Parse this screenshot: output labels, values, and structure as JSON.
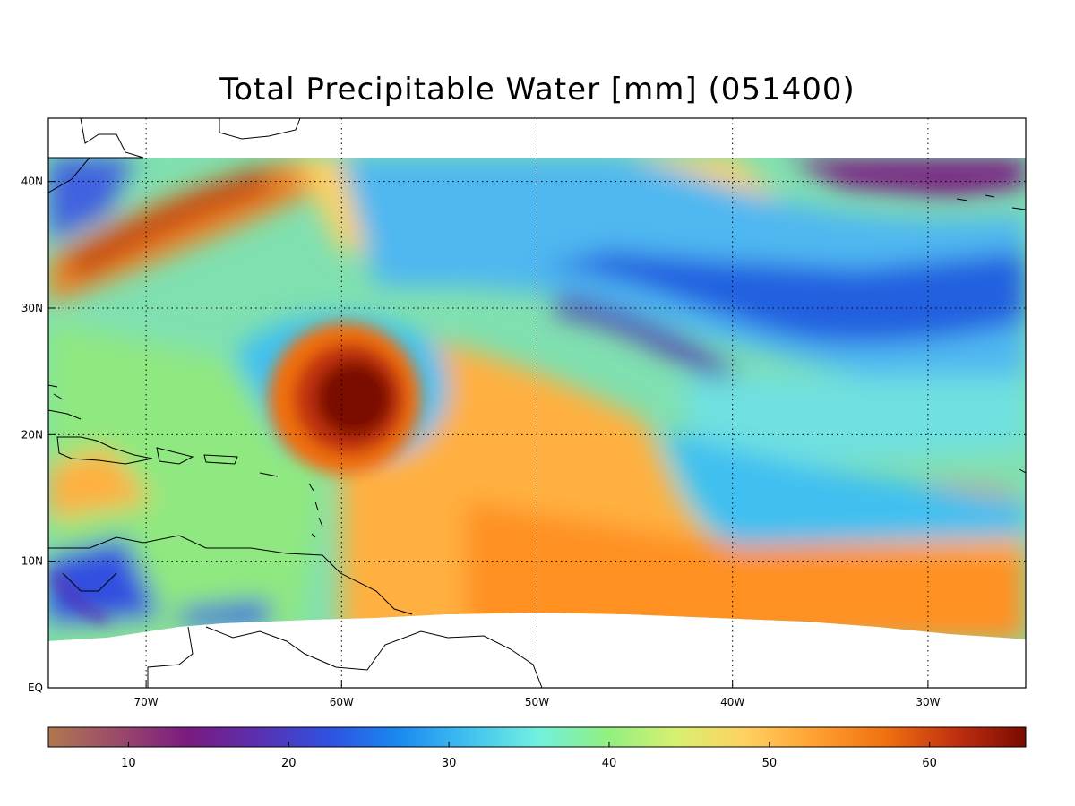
{
  "title": "Total Precipitable Water [mm]   (051400)",
  "map": {
    "lon_range": [
      -75,
      -25
    ],
    "lat_range": [
      0,
      45
    ],
    "grid": "dotted",
    "lon_ticks": [
      {
        "value": -70,
        "label": "70W"
      },
      {
        "value": -60,
        "label": "60W"
      },
      {
        "value": -50,
        "label": "50W"
      },
      {
        "value": -40,
        "label": "40W"
      },
      {
        "value": -30,
        "label": "30W"
      }
    ],
    "lat_ticks": [
      {
        "value": 0,
        "label": "EQ"
      },
      {
        "value": 10,
        "label": "10N"
      },
      {
        "value": 20,
        "label": "20N"
      },
      {
        "value": 30,
        "label": "30N"
      },
      {
        "value": 40,
        "label": "40N"
      }
    ],
    "features": [
      "hurricane-eye",
      "coastlines"
    ]
  },
  "colorbar": {
    "range": [
      5,
      66
    ],
    "ticks": [
      {
        "value": 10,
        "label": "10"
      },
      {
        "value": 20,
        "label": "20"
      },
      {
        "value": 30,
        "label": "30"
      },
      {
        "value": 40,
        "label": "40"
      },
      {
        "value": 50,
        "label": "50"
      },
      {
        "value": 60,
        "label": "60"
      }
    ],
    "colors": [
      "#b07850",
      "#9a4a6a",
      "#7a1a80",
      "#5a30b0",
      "#3050e0",
      "#1a88f0",
      "#40c0f0",
      "#70f0e0",
      "#90f080",
      "#d8f070",
      "#ffd060",
      "#ffa030",
      "#f07010",
      "#c03010",
      "#7a0a00"
    ]
  },
  "colors": {
    "background": "#ffffff",
    "coast": "#000000",
    "grid": "#000000"
  }
}
